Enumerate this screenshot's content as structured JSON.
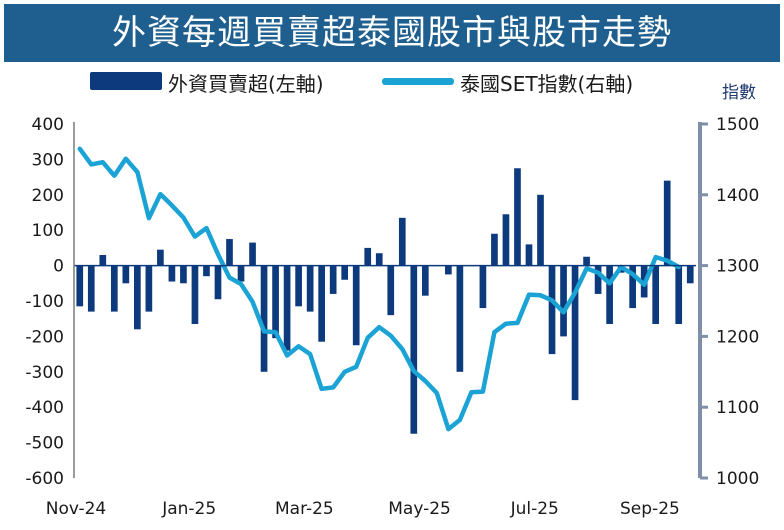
{
  "title": "外資每週買賣超泰國股市與股市走勢",
  "chart_data": {
    "type": "bar+line",
    "title": "外資每週買賣超泰國股市與股市走勢",
    "legend": [
      {
        "name": "外資買賣超(左軸)",
        "kind": "bar",
        "color": "#0d3a7c"
      },
      {
        "name": "泰國SET指數(右軸)",
        "kind": "line",
        "color": "#1aa3d4"
      }
    ],
    "right_axis_unit": "指數",
    "left_axis": {
      "min": -600,
      "max": 400,
      "ticks": [
        400,
        300,
        200,
        100,
        0,
        -100,
        -200,
        -300,
        -400,
        -500,
        -600
      ]
    },
    "right_axis": {
      "min": 1000,
      "max": 1500,
      "ticks": [
        1500,
        1400,
        1300,
        1200,
        1100,
        1000
      ]
    },
    "x_tick_labels": [
      "Nov-24",
      "Jan-25",
      "Mar-25",
      "May-25",
      "Jul-25",
      "Sep-25"
    ],
    "x_tick_week_index": [
      0,
      10,
      20,
      30,
      40,
      50
    ],
    "series": [
      {
        "name": "外資買賣超(左軸)",
        "axis": "left",
        "values": [
          -115,
          -130,
          30,
          -130,
          -50,
          -180,
          -130,
          45,
          -45,
          -50,
          -165,
          -30,
          -95,
          75,
          -45,
          65,
          -300,
          -205,
          -240,
          -115,
          -130,
          -215,
          -80,
          -40,
          -225,
          50,
          35,
          -140,
          135,
          -475,
          -85,
          0,
          -25,
          -300,
          0,
          -120,
          90,
          145,
          275,
          60,
          200,
          -250,
          -200,
          -380,
          25,
          -80,
          -165,
          -20,
          -120,
          -90,
          -165,
          240,
          -165,
          -50
        ],
        "color": "#0d3a7c"
      },
      {
        "name": "泰國SET指數(右軸)",
        "axis": "right",
        "values": [
          1465,
          1443,
          1446,
          1427,
          1451,
          1432,
          1367,
          1401,
          1385,
          1368,
          1341,
          1353,
          1316,
          1283,
          1274,
          1249,
          1207,
          1206,
          1173,
          1186,
          1175,
          1126,
          1128,
          1150,
          1157,
          1198,
          1213,
          1201,
          1182,
          1151,
          1137,
          1120,
          1069,
          1082,
          1121,
          1122,
          1206,
          1218,
          1219,
          1259,
          1258,
          1251,
          1234,
          1262,
          1296,
          1290,
          1275,
          1298,
          1288,
          1273,
          1312,
          1307,
          1298
        ]
      }
    ]
  }
}
